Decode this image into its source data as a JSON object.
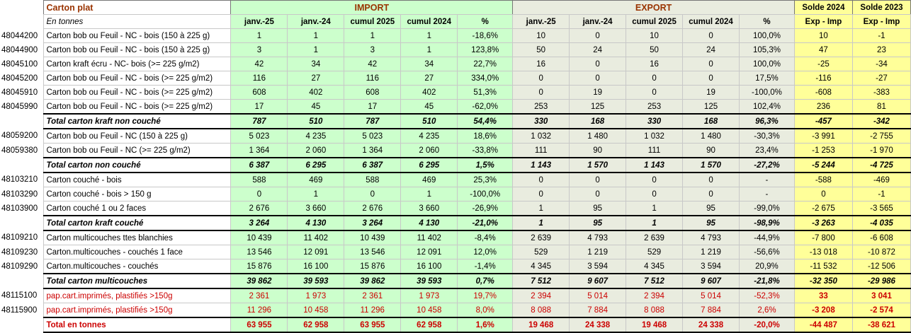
{
  "header": {
    "title": "Carton plat",
    "import": "IMPORT",
    "export": "EXPORT",
    "solde2024": "Solde 2024",
    "solde2023": "Solde 2023"
  },
  "subheader": {
    "unit": "En tonnes",
    "cols": [
      "janv.-25",
      "janv.-24",
      "cumul 2025",
      "cumul 2024",
      "%",
      "janv.-25",
      "janv.-24",
      "cumul 2025",
      "cumul 2024",
      "%",
      "Exp - Imp",
      "Exp - Imp"
    ]
  },
  "rows": [
    {
      "type": "data",
      "code": "48044200",
      "desc": "Carton bob ou Feuil - NC - bois (150 à 225 g)",
      "v": [
        "1",
        "1",
        "1",
        "1",
        "-18,6%",
        "10",
        "0",
        "10",
        "0",
        "100,0%",
        "10",
        "-1"
      ]
    },
    {
      "type": "data",
      "code": "48044900",
      "desc": "Carton bob ou Feuil - NC - bois (150 à 225 g)",
      "v": [
        "3",
        "1",
        "3",
        "1",
        "123,8%",
        "50",
        "24",
        "50",
        "24",
        "105,3%",
        "47",
        "23"
      ]
    },
    {
      "type": "data",
      "code": "48045100",
      "desc": "Carton kraft écru - NC- bois  (>= 225 g/m2)",
      "v": [
        "42",
        "34",
        "42",
        "34",
        "22,7%",
        "16",
        "0",
        "16",
        "0",
        "100,0%",
        "-25",
        "-34"
      ]
    },
    {
      "type": "data",
      "code": "48045200",
      "desc": "Carton bob ou Feuil - NC - bois (>= 225 g/m2)",
      "v": [
        "116",
        "27",
        "116",
        "27",
        "334,0%",
        "0",
        "0",
        "0",
        "0",
        "17,5%",
        "-116",
        "-27"
      ]
    },
    {
      "type": "data",
      "code": "48045910",
      "desc": "Carton bob ou Feuil - NC - bois (>= 225 g/m2)",
      "v": [
        "608",
        "402",
        "608",
        "402",
        "51,3%",
        "0",
        "19",
        "0",
        "19",
        "-100,0%",
        "-608",
        "-383"
      ]
    },
    {
      "type": "data",
      "code": "48045990",
      "desc": "Carton bob ou Feuil - NC - bois (>= 225 g/m2)",
      "v": [
        "17",
        "45",
        "17",
        "45",
        "-62,0%",
        "253",
        "125",
        "253",
        "125",
        "102,4%",
        "236",
        "81"
      ]
    },
    {
      "type": "total",
      "code": "",
      "desc": "Total carton kraft non couché",
      "v": [
        "787",
        "510",
        "787",
        "510",
        "54,4%",
        "330",
        "168",
        "330",
        "168",
        "96,3%",
        "-457",
        "-342"
      ]
    },
    {
      "type": "data",
      "code": "48059200",
      "desc": "Carton bob ou Feuil - NC (150 à 225 g)",
      "v": [
        "5 023",
        "4 235",
        "5 023",
        "4 235",
        "18,6%",
        "1 032",
        "1 480",
        "1 032",
        "1 480",
        "-30,3%",
        "-3 991",
        "-2 755"
      ]
    },
    {
      "type": "data",
      "code": "48059380",
      "desc": "Carton bob ou Feuil - NC (>= 225 g/m2)",
      "v": [
        "1 364",
        "2 060",
        "1 364",
        "2 060",
        "-33,8%",
        "111",
        "90",
        "111",
        "90",
        "23,4%",
        "-1 253",
        "-1 970"
      ]
    },
    {
      "type": "total",
      "code": "",
      "desc": "Total carton non couché",
      "v": [
        "6 387",
        "6 295",
        "6 387",
        "6 295",
        "1,5%",
        "1 143",
        "1 570",
        "1 143",
        "1 570",
        "-27,2%",
        "-5 244",
        "-4 725"
      ]
    },
    {
      "type": "data",
      "code": "48103210",
      "desc": "Carton couché - bois",
      "v": [
        "588",
        "469",
        "588",
        "469",
        "25,3%",
        "0",
        "0",
        "0",
        "0",
        "-",
        "-588",
        "-469"
      ]
    },
    {
      "type": "data",
      "code": "48103290",
      "desc": "Carton couché - bois > 150 g",
      "v": [
        "0",
        "1",
        "0",
        "1",
        "-100,0%",
        "0",
        "0",
        "0",
        "0",
        "-",
        "0",
        "-1"
      ]
    },
    {
      "type": "data",
      "code": "48103900",
      "desc": "Carton couché  1 ou 2 faces",
      "v": [
        "2 676",
        "3 660",
        "2 676",
        "3 660",
        "-26,9%",
        "1",
        "95",
        "1",
        "95",
        "-99,0%",
        "-2 675",
        "-3 565"
      ]
    },
    {
      "type": "total",
      "code": "",
      "desc": "Total carton kraft couché",
      "v": [
        "3 264",
        "4 130",
        "3 264",
        "4 130",
        "-21,0%",
        "1",
        "95",
        "1",
        "95",
        "-98,9%",
        "-3 263",
        "-4 035"
      ]
    },
    {
      "type": "data",
      "code": "48109210",
      "desc": "Carton multicouches ttes blanchies",
      "v": [
        "10 439",
        "11 402",
        "10 439",
        "11 402",
        "-8,4%",
        "2 639",
        "4 793",
        "2 639",
        "4 793",
        "-44,9%",
        "-7 800",
        "-6 608"
      ]
    },
    {
      "type": "data",
      "code": "48109230",
      "desc": "Carton.multicouches - couchés 1 face",
      "v": [
        "13 546",
        "12 091",
        "13 546",
        "12 091",
        "12,0%",
        "529",
        "1 219",
        "529",
        "1 219",
        "-56,6%",
        "-13 018",
        "-10 872"
      ]
    },
    {
      "type": "data",
      "code": "48109290",
      "desc": "Carton.multicouches - couchés",
      "v": [
        "15 876",
        "16 100",
        "15 876",
        "16 100",
        "-1,4%",
        "4 345",
        "3 594",
        "4 345",
        "3 594",
        "20,9%",
        "-11 532",
        "-12 506"
      ]
    },
    {
      "type": "total",
      "code": "",
      "desc": "Total carton multicouches",
      "v": [
        "39 862",
        "39 593",
        "39 862",
        "39 593",
        "0,7%",
        "7 512",
        "9 607",
        "7 512",
        "9 607",
        "-21,8%",
        "-32 350",
        "-29 986"
      ]
    },
    {
      "type": "red",
      "code": "48115100",
      "desc": "pap.cart.imprimés, plastifiés >150g",
      "v": [
        "2 361",
        "1 973",
        "2 361",
        "1 973",
        "19,7%",
        "2 394",
        "5 014",
        "2 394",
        "5 014",
        "-52,3%",
        "33",
        "3 041"
      ]
    },
    {
      "type": "red",
      "code": "48115900",
      "desc": "pap.cart.imprimés, plastifiés >150g",
      "v": [
        "11 296",
        "10 458",
        "11 296",
        "10 458",
        "8,0%",
        "8 088",
        "7 884",
        "8 088",
        "7 884",
        "2,6%",
        "-3 208",
        "-2 574"
      ]
    },
    {
      "type": "grand",
      "code": "",
      "desc": "Total en tonnes",
      "v": [
        "63 955",
        "62 958",
        "63 955",
        "62 958",
        "1,6%",
        "19 468",
        "24 338",
        "19 468",
        "24 338",
        "-20,0%",
        "-44 487",
        "-38 621"
      ]
    }
  ]
}
